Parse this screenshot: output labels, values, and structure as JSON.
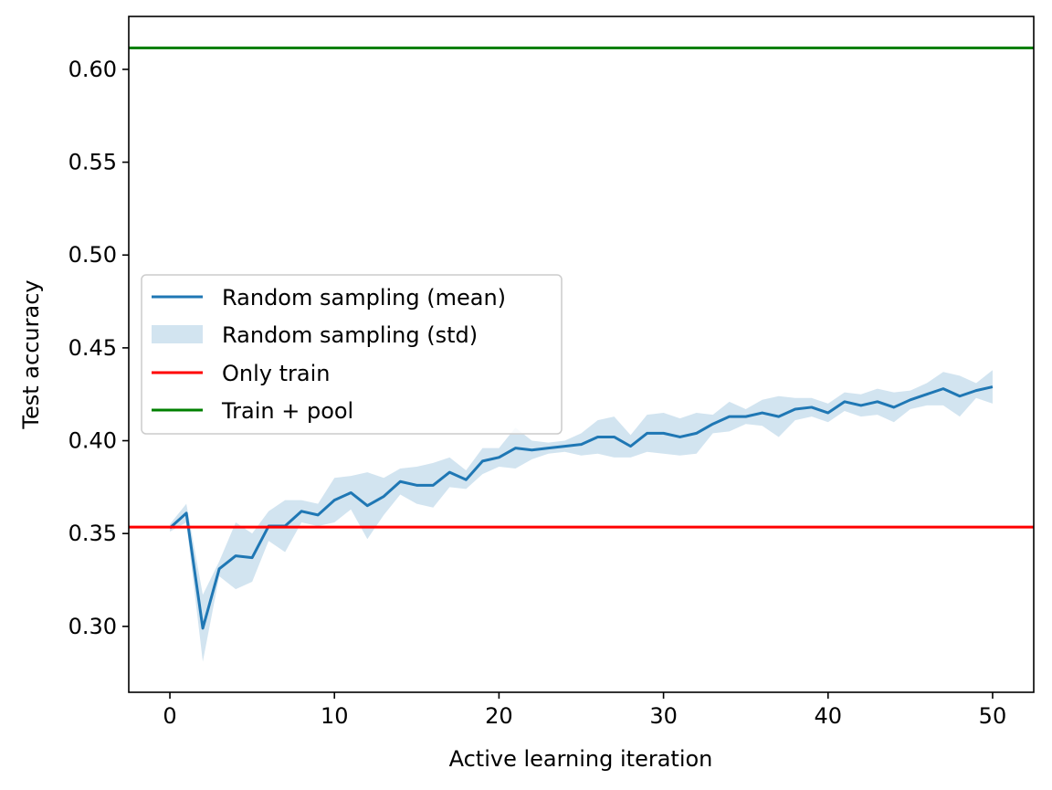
{
  "chart_data": {
    "type": "line",
    "xlabel": "Active learning iteration",
    "ylabel": "Test accuracy",
    "xlim": [
      -2.5,
      52.5
    ],
    "ylim": [
      0.2645,
      0.6285
    ],
    "xticks": [
      0,
      10,
      20,
      30,
      40,
      50
    ],
    "yticks": [
      0.3,
      0.35,
      0.4,
      0.45,
      0.5,
      0.55,
      0.6
    ],
    "x": [
      0,
      1,
      2,
      3,
      4,
      5,
      6,
      7,
      8,
      9,
      10,
      11,
      12,
      13,
      14,
      15,
      16,
      17,
      18,
      19,
      20,
      21,
      22,
      23,
      24,
      25,
      26,
      27,
      28,
      29,
      30,
      31,
      32,
      33,
      34,
      35,
      36,
      37,
      38,
      39,
      40,
      41,
      42,
      43,
      44,
      45,
      46,
      47,
      48,
      49,
      50
    ],
    "series": [
      {
        "name": "Random sampling (mean)",
        "kind": "line",
        "color": "#1f77b4",
        "values": [
          0.353,
          0.361,
          0.299,
          0.331,
          0.338,
          0.337,
          0.354,
          0.354,
          0.362,
          0.36,
          0.368,
          0.372,
          0.365,
          0.37,
          0.378,
          0.376,
          0.376,
          0.383,
          0.379,
          0.389,
          0.391,
          0.396,
          0.395,
          0.396,
          0.397,
          0.398,
          0.402,
          0.402,
          0.397,
          0.404,
          0.404,
          0.402,
          0.404,
          0.409,
          0.413,
          0.413,
          0.415,
          0.413,
          0.417,
          0.418,
          0.415,
          0.421,
          0.419,
          0.421,
          0.418,
          0.422,
          0.425,
          0.428,
          0.424,
          0.427,
          0.429
        ]
      },
      {
        "name": "Random sampling (std)",
        "kind": "band",
        "color": "#1f77b4",
        "opacity": 0.2,
        "upper": [
          0.355,
          0.366,
          0.317,
          0.335,
          0.356,
          0.35,
          0.362,
          0.368,
          0.368,
          0.366,
          0.38,
          0.381,
          0.383,
          0.38,
          0.385,
          0.386,
          0.388,
          0.391,
          0.384,
          0.396,
          0.396,
          0.407,
          0.4,
          0.399,
          0.4,
          0.404,
          0.411,
          0.413,
          0.403,
          0.414,
          0.415,
          0.412,
          0.415,
          0.414,
          0.421,
          0.417,
          0.422,
          0.424,
          0.423,
          0.423,
          0.42,
          0.426,
          0.425,
          0.428,
          0.426,
          0.427,
          0.431,
          0.437,
          0.435,
          0.431,
          0.438
        ],
        "lower": [
          0.351,
          0.356,
          0.281,
          0.327,
          0.32,
          0.324,
          0.346,
          0.34,
          0.356,
          0.354,
          0.356,
          0.363,
          0.347,
          0.36,
          0.371,
          0.366,
          0.364,
          0.375,
          0.374,
          0.382,
          0.386,
          0.385,
          0.39,
          0.393,
          0.394,
          0.392,
          0.393,
          0.391,
          0.391,
          0.394,
          0.393,
          0.392,
          0.393,
          0.404,
          0.405,
          0.409,
          0.408,
          0.402,
          0.411,
          0.413,
          0.41,
          0.416,
          0.413,
          0.414,
          0.41,
          0.417,
          0.419,
          0.419,
          0.413,
          0.423,
          0.42
        ]
      },
      {
        "name": "Only train",
        "kind": "hline",
        "color": "#ff0000",
        "value": 0.3535
      },
      {
        "name": "Train + pool",
        "kind": "hline",
        "color": "#008000",
        "value": 0.6115
      }
    ],
    "legend": {
      "placement": "center-left",
      "entries": [
        "Random sampling (mean)",
        "Random sampling (std)",
        "Only train",
        "Train + pool"
      ]
    }
  }
}
